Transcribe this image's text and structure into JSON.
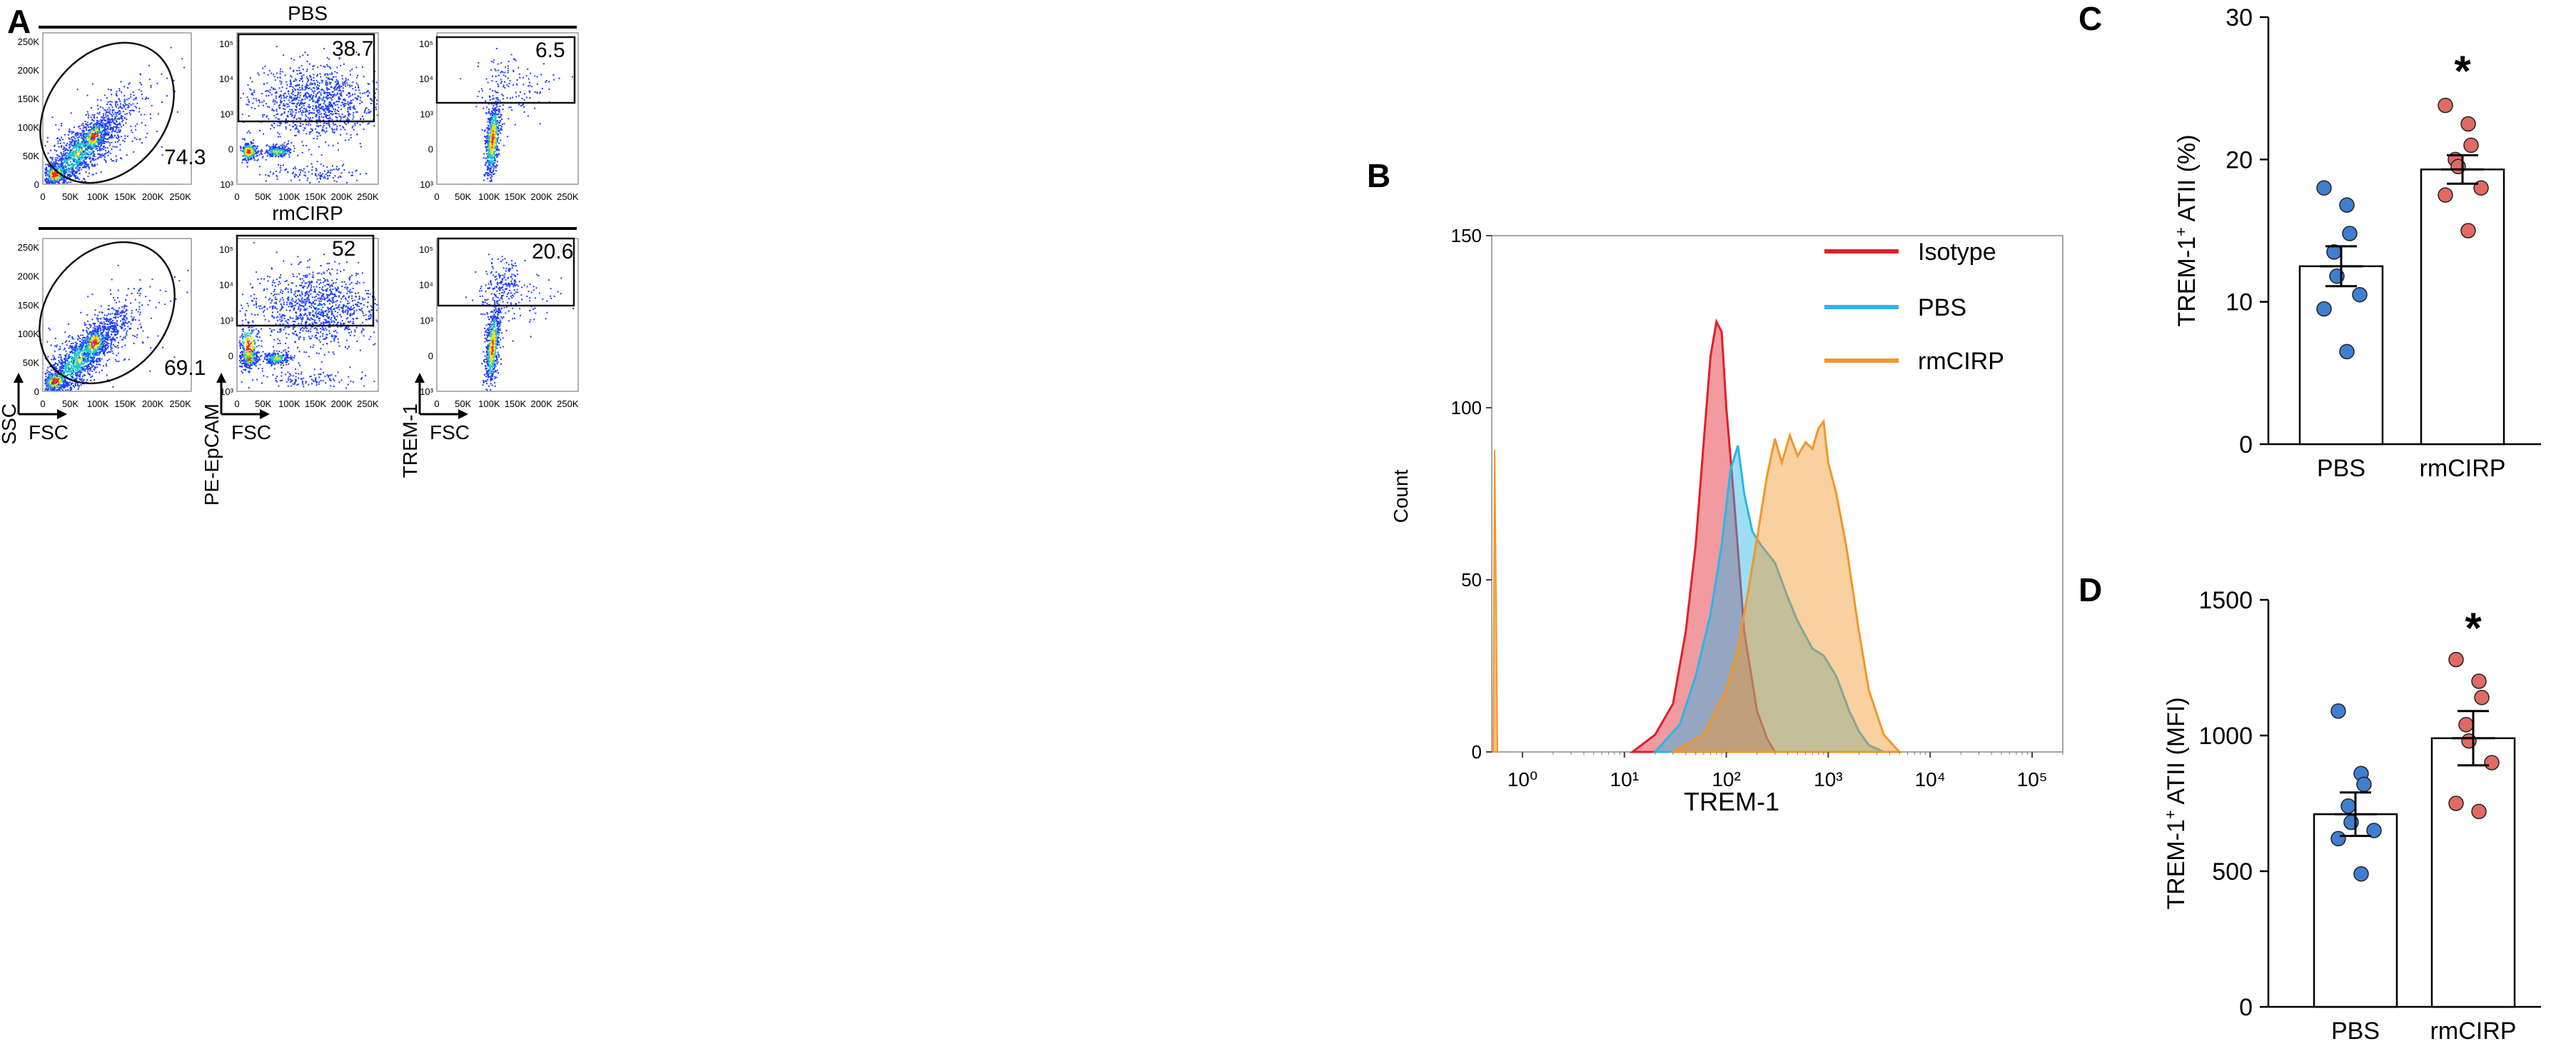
{
  "figure": {
    "panel_letters": [
      "A",
      "B",
      "C",
      "D"
    ],
    "colors": {
      "flow_low": "#1e3cff",
      "flow_mid": "#19c8c8",
      "flow_high": "#ffe000",
      "flow_peak": "#ff2200",
      "isotype": "#e0202a",
      "pbs": "#29b6e8",
      "rmcirp": "#f2962a",
      "dot_pbs": "#3f7fcf",
      "dot_rmcirp": "#e06a64"
    }
  },
  "panel_a": {
    "rows": [
      {
        "title": "PBS",
        "plots": [
          {
            "gate_value": "74.3",
            "x_ticks": [
              "0",
              "50K",
              "100K",
              "150K",
              "200K",
              "250K"
            ],
            "y_ticks": [
              "0",
              "50K",
              "100K",
              "150K",
              "200K",
              "250K"
            ]
          },
          {
            "gate_value": "38.7",
            "x_ticks": [
              "0",
              "50K",
              "100K",
              "150K",
              "200K",
              "250K"
            ],
            "y_ticks": [
              "10³",
              "0",
              "10³",
              "10⁴",
              "10⁵"
            ]
          },
          {
            "gate_value": "6.5",
            "x_ticks": [
              "0",
              "50K",
              "100K",
              "150K",
              "200K",
              "250K"
            ],
            "y_ticks": [
              "10³",
              "0",
              "10³",
              "10⁴",
              "10⁵"
            ]
          }
        ]
      },
      {
        "title": "rmCIRP",
        "plots": [
          {
            "gate_value": "69.1",
            "x_ticks": [
              "0",
              "50K",
              "100K",
              "150K",
              "200K",
              "250K"
            ],
            "y_ticks": [
              "0",
              "50K",
              "100K",
              "150K",
              "200K",
              "250K"
            ]
          },
          {
            "gate_value": "52",
            "x_ticks": [
              "0",
              "50K",
              "100K",
              "150K",
              "200K",
              "250K"
            ],
            "y_ticks": [
              "10³",
              "0",
              "10³",
              "10⁴",
              "10⁵"
            ]
          },
          {
            "gate_value": "20.6",
            "x_ticks": [
              "0",
              "50K",
              "100K",
              "150K",
              "200K",
              "250K"
            ],
            "y_ticks": [
              "10³",
              "0",
              "10³",
              "10⁴",
              "10⁵"
            ]
          }
        ]
      }
    ],
    "axis_labels": [
      {
        "y": "SSC",
        "x": "FSC"
      },
      {
        "y": "PE-EpCAM",
        "x": "FSC"
      },
      {
        "y": "TREM-1",
        "x": "FSC"
      }
    ]
  },
  "chart_data": [
    {
      "id": "B",
      "type": "area",
      "title": "",
      "xlabel": "TREM-1",
      "ylabel": "Count",
      "xscale": "log",
      "xlim": [
        0.5,
        200000
      ],
      "ylim": [
        0,
        150
      ],
      "x_ticks": [
        {
          "value": 1,
          "label": "10⁰"
        },
        {
          "value": 10,
          "label": "10¹"
        },
        {
          "value": 100,
          "label": "10²"
        },
        {
          "value": 1000,
          "label": "10³"
        },
        {
          "value": 10000,
          "label": "10⁴"
        },
        {
          "value": 100000,
          "label": "10⁵"
        }
      ],
      "y_ticks": [
        0,
        50,
        100,
        150
      ],
      "legend_position": "top-right",
      "series": [
        {
          "name": "Isotype",
          "x": [
            12,
            20,
            30,
            40,
            50,
            60,
            70,
            80,
            90,
            100,
            120,
            150,
            200,
            250,
            300
          ],
          "y": [
            0,
            5,
            14,
            35,
            60,
            90,
            115,
            125,
            122,
            100,
            72,
            35,
            12,
            4,
            0
          ]
        },
        {
          "name": "PBS",
          "x": [
            20,
            35,
            50,
            70,
            90,
            110,
            130,
            150,
            180,
            220,
            300,
            400,
            500,
            700,
            900,
            1200,
            1600,
            2000,
            2500,
            3500
          ],
          "y": [
            0,
            8,
            22,
            40,
            60,
            82,
            89,
            75,
            64,
            60,
            55,
            45,
            38,
            30,
            28,
            22,
            12,
            6,
            2,
            0
          ]
        },
        {
          "name": "rmCIRP",
          "x": [
            30,
            60,
            100,
            130,
            160,
            200,
            250,
            300,
            350,
            420,
            500,
            600,
            700,
            800,
            900,
            1000,
            1200,
            1500,
            2000,
            2500,
            3500,
            5000
          ],
          "y": [
            0,
            5,
            18,
            30,
            45,
            62,
            80,
            91,
            84,
            92,
            86,
            90,
            88,
            94,
            96,
            84,
            75,
            60,
            35,
            18,
            5,
            0
          ]
        }
      ]
    },
    {
      "id": "C",
      "type": "bar",
      "ylabel_main": "TREM-1",
      "ylabel_sup": "+",
      "ylabel_rest": " ATII  (%)",
      "categories": [
        "PBS",
        "rmCIRP"
      ],
      "values": [
        12.5,
        19.3
      ],
      "sem": [
        1.4,
        1.0
      ],
      "ylim": [
        0,
        30
      ],
      "y_ticks": [
        0,
        10,
        20,
        30
      ],
      "significance": [
        "",
        "*"
      ],
      "points": [
        [
          18,
          16.8,
          14.8,
          13.5,
          11.8,
          10.5,
          9.5,
          6.5
        ],
        [
          23.8,
          22.5,
          21,
          20,
          19.5,
          18,
          17.5,
          15
        ]
      ]
    },
    {
      "id": "D",
      "type": "bar",
      "ylabel_main": "TREM-1",
      "ylabel_sup": "+",
      "ylabel_rest": " ATII  (MFI)",
      "categories": [
        "PBS",
        "rmCIRP"
      ],
      "values": [
        710,
        990
      ],
      "sem": [
        80,
        100
      ],
      "ylim": [
        0,
        1500
      ],
      "y_ticks": [
        0,
        500,
        1000,
        1500
      ],
      "significance": [
        "",
        "*"
      ],
      "points": [
        [
          1090,
          860,
          820,
          740,
          680,
          650,
          620,
          490
        ],
        [
          1280,
          1200,
          1140,
          1040,
          980,
          900,
          750,
          720
        ]
      ]
    }
  ]
}
